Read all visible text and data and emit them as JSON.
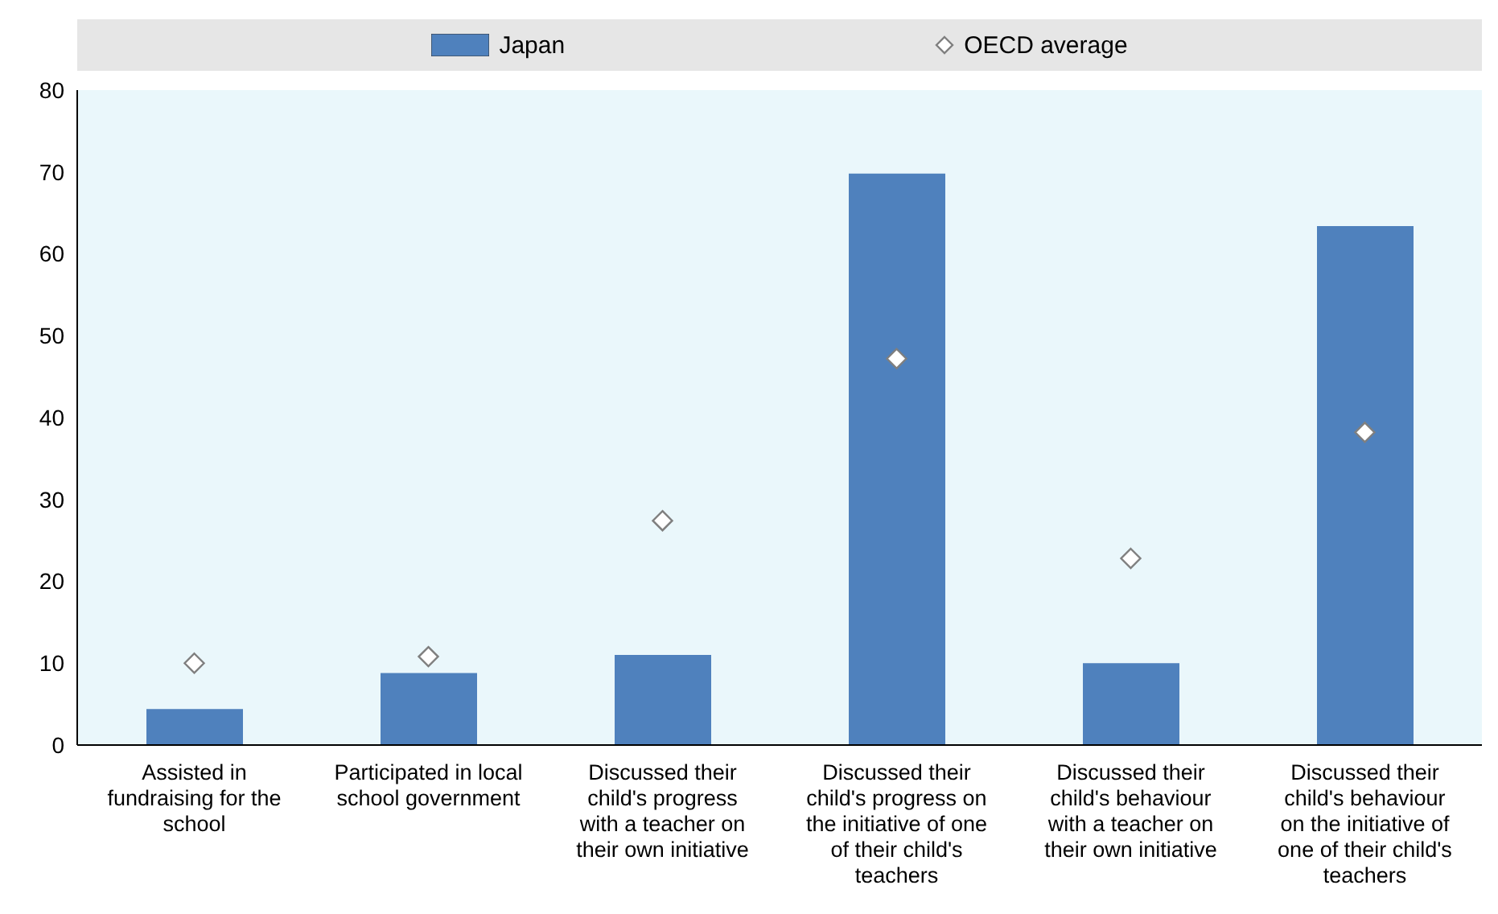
{
  "chart_data": {
    "type": "bar",
    "categories": [
      "Assisted in fundraising for the school",
      "Participated in local school government",
      "Discussed their child's progress with a teacher on their own initiative",
      "Discussed their child's progress on the initiative of one of their child's teachers",
      "Discussed their child's behaviour with a teacher on their own initiative",
      "Discussed their child's behaviour on the initiative of one of their child's teachers"
    ],
    "series": [
      {
        "name": "Japan",
        "color": "#4f81bd",
        "values": [
          4.4,
          8.8,
          11,
          69.8,
          10,
          63.4
        ]
      },
      {
        "name": "OECD average",
        "type": "scatter",
        "color": "#7f7f7f",
        "marker": "diamond",
        "values": [
          10,
          10.8,
          27.4,
          47.2,
          22.8,
          38.2
        ]
      }
    ],
    "ylim": [
      0,
      80
    ],
    "yticks": [
      0,
      10,
      20,
      30,
      40,
      50,
      60,
      70,
      80
    ],
    "grid": false,
    "legend": "top"
  }
}
